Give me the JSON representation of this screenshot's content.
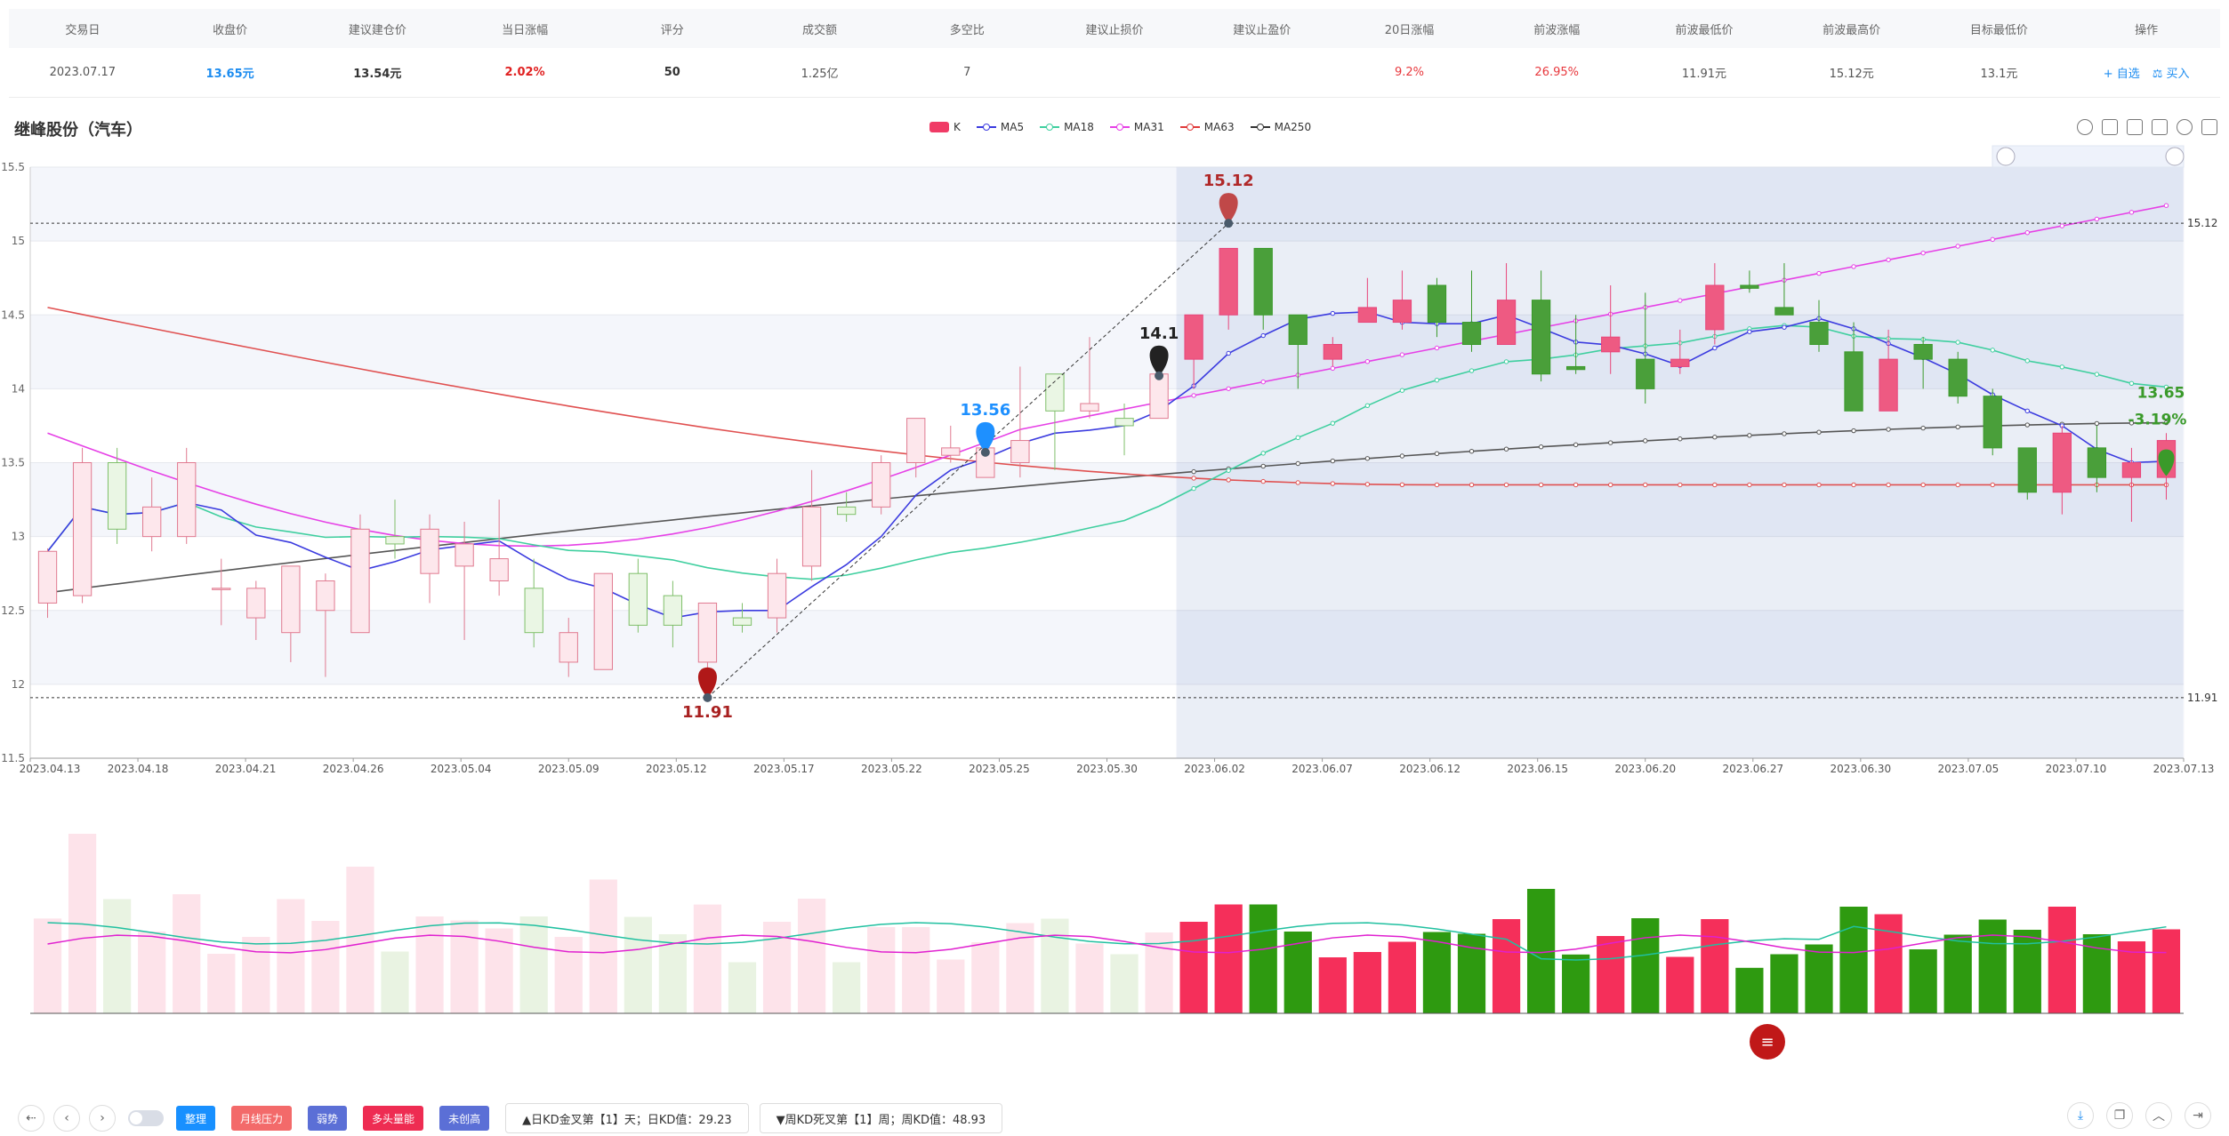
{
  "table": {
    "headers": [
      "交易日",
      "收盘价",
      "建议建仓价",
      "当日涨幅",
      "评分",
      "成交额",
      "多空比",
      "建议止损价",
      "建议止盈价",
      "20日涨幅",
      "前波涨幅",
      "前波最低价",
      "前波最高价",
      "目标最低价",
      "操作"
    ],
    "row": {
      "date": "2023.07.17",
      "close": "13.65元",
      "build_price": "13.54元",
      "day_change": "2.02%",
      "score": "50",
      "turnover": "1.25亿",
      "ls_ratio": "7",
      "stop_loss": "",
      "take_profit": "",
      "change_20d": "9.2%",
      "wave_change": "26.95%",
      "wave_low": "11.91元",
      "wave_high": "15.12元",
      "target_low": "13.1元"
    },
    "actions": {
      "watch": "+ 自选",
      "buy": "⚖ 买入"
    }
  },
  "chart": {
    "title": "继峰股份（汽车）",
    "legend": [
      {
        "name": "K",
        "color": "#f03b66",
        "kind": "box"
      },
      {
        "name": "MA5",
        "color": "#3b3bdf",
        "kind": "line"
      },
      {
        "name": "MA18",
        "color": "#3fcf9f",
        "kind": "line"
      },
      {
        "name": "MA31",
        "color": "#e640e6",
        "kind": "line"
      },
      {
        "name": "MA63",
        "color": "#e03a3a",
        "kind": "line"
      },
      {
        "name": "MA250",
        "color": "#333333",
        "kind": "line"
      }
    ],
    "y_ticks": [
      "15.5",
      "15",
      "14.5",
      "14",
      "13.5",
      "13",
      "12.5",
      "12",
      "11.5"
    ],
    "x_ticks": [
      "2023.04.13",
      "2023.04.18",
      "2023.04.21",
      "2023.04.26",
      "2023.05.04",
      "2023.05.09",
      "2023.05.12",
      "2023.05.17",
      "2023.05.22",
      "2023.05.25",
      "2023.05.30",
      "2023.06.02",
      "2023.06.07",
      "2023.06.12",
      "2023.06.15",
      "2023.06.20",
      "2023.06.27",
      "2023.06.30",
      "2023.07.05",
      "2023.07.10",
      "2023.07.13"
    ],
    "markers": {
      "low": "11.91",
      "high": "15.12",
      "m1": "13.56",
      "m2": "14.1",
      "last_price": "13.65",
      "last_change": "-3.19%"
    },
    "hlines": {
      "high": "15.12",
      "low": "11.91"
    }
  },
  "chart_data": {
    "type": "candlestick",
    "ylim": [
      11.5,
      15.5
    ],
    "candles": [
      [
        12.55,
        12.9,
        12.45,
        12.92
      ],
      [
        12.6,
        13.5,
        12.55,
        13.6
      ],
      [
        13.5,
        13.05,
        12.95,
        13.6
      ],
      [
        13.0,
        13.2,
        12.9,
        13.4
      ],
      [
        13.0,
        13.5,
        12.95,
        13.6
      ],
      [
        12.65,
        12.65,
        12.4,
        12.85
      ],
      [
        12.45,
        12.65,
        12.3,
        12.7
      ],
      [
        12.35,
        12.8,
        12.15,
        12.8
      ],
      [
        12.5,
        12.7,
        12.05,
        12.75
      ],
      [
        12.35,
        13.05,
        12.35,
        13.15
      ],
      [
        13.0,
        12.95,
        12.85,
        13.25
      ],
      [
        12.75,
        13.05,
        12.55,
        13.15
      ],
      [
        12.8,
        12.95,
        12.3,
        13.1
      ],
      [
        12.7,
        12.85,
        12.6,
        13.25
      ],
      [
        12.65,
        12.35,
        12.25,
        12.85
      ],
      [
        12.15,
        12.35,
        12.05,
        12.45
      ],
      [
        12.1,
        12.75,
        12.1,
        12.75
      ],
      [
        12.75,
        12.4,
        12.35,
        12.85
      ],
      [
        12.6,
        12.4,
        12.25,
        12.7
      ],
      [
        12.15,
        12.55,
        11.91,
        12.55
      ],
      [
        12.45,
        12.4,
        12.35,
        12.55
      ],
      [
        12.45,
        12.75,
        12.35,
        12.85
      ],
      [
        12.8,
        13.2,
        12.7,
        13.45
      ],
      [
        13.2,
        13.15,
        13.1,
        13.3
      ],
      [
        13.2,
        13.5,
        13.15,
        13.55
      ],
      [
        13.5,
        13.8,
        13.4,
        13.8
      ],
      [
        13.55,
        13.6,
        13.5,
        13.75
      ],
      [
        13.4,
        13.6,
        13.4,
        13.7
      ],
      [
        13.5,
        13.65,
        13.4,
        14.15
      ],
      [
        14.1,
        13.85,
        13.45,
        14.1
      ],
      [
        13.85,
        13.9,
        13.8,
        14.35
      ],
      [
        13.8,
        13.75,
        13.55,
        13.9
      ],
      [
        13.8,
        14.1,
        13.8,
        14.1
      ],
      [
        14.2,
        14.5,
        14.0,
        14.5
      ],
      [
        14.5,
        14.95,
        14.4,
        14.95
      ],
      [
        14.95,
        14.5,
        14.4,
        14.95
      ],
      [
        14.5,
        14.3,
        14.0,
        14.5
      ],
      [
        14.2,
        14.3,
        14.15,
        14.35
      ],
      [
        14.45,
        14.55,
        14.45,
        14.75
      ],
      [
        14.45,
        14.6,
        14.4,
        14.8
      ],
      [
        14.7,
        14.45,
        14.35,
        14.75
      ],
      [
        14.45,
        14.3,
        14.25,
        14.8
      ],
      [
        14.3,
        14.6,
        14.3,
        14.85
      ],
      [
        14.6,
        14.1,
        14.05,
        14.8
      ],
      [
        14.15,
        14.13,
        14.1,
        14.5
      ],
      [
        14.25,
        14.35,
        14.1,
        14.7
      ],
      [
        14.2,
        14.0,
        13.9,
        14.65
      ],
      [
        14.15,
        14.2,
        14.1,
        14.4
      ],
      [
        14.4,
        14.7,
        14.3,
        14.85
      ],
      [
        14.7,
        14.68,
        14.65,
        14.8
      ],
      [
        14.55,
        14.5,
        14.5,
        14.85
      ],
      [
        14.45,
        14.3,
        14.25,
        14.6
      ],
      [
        14.25,
        13.85,
        13.85,
        14.45
      ],
      [
        13.85,
        14.2,
        13.85,
        14.4
      ],
      [
        14.3,
        14.2,
        14.0,
        14.35
      ],
      [
        14.2,
        13.95,
        13.9,
        14.25
      ],
      [
        13.95,
        13.6,
        13.55,
        14.0
      ],
      [
        13.6,
        13.3,
        13.25,
        13.6
      ],
      [
        13.3,
        13.7,
        13.15,
        13.75
      ],
      [
        13.6,
        13.4,
        13.3,
        13.75
      ],
      [
        13.4,
        13.5,
        13.1,
        13.6
      ],
      [
        13.4,
        13.65,
        13.25,
        13.7
      ]
    ]
  }
}
